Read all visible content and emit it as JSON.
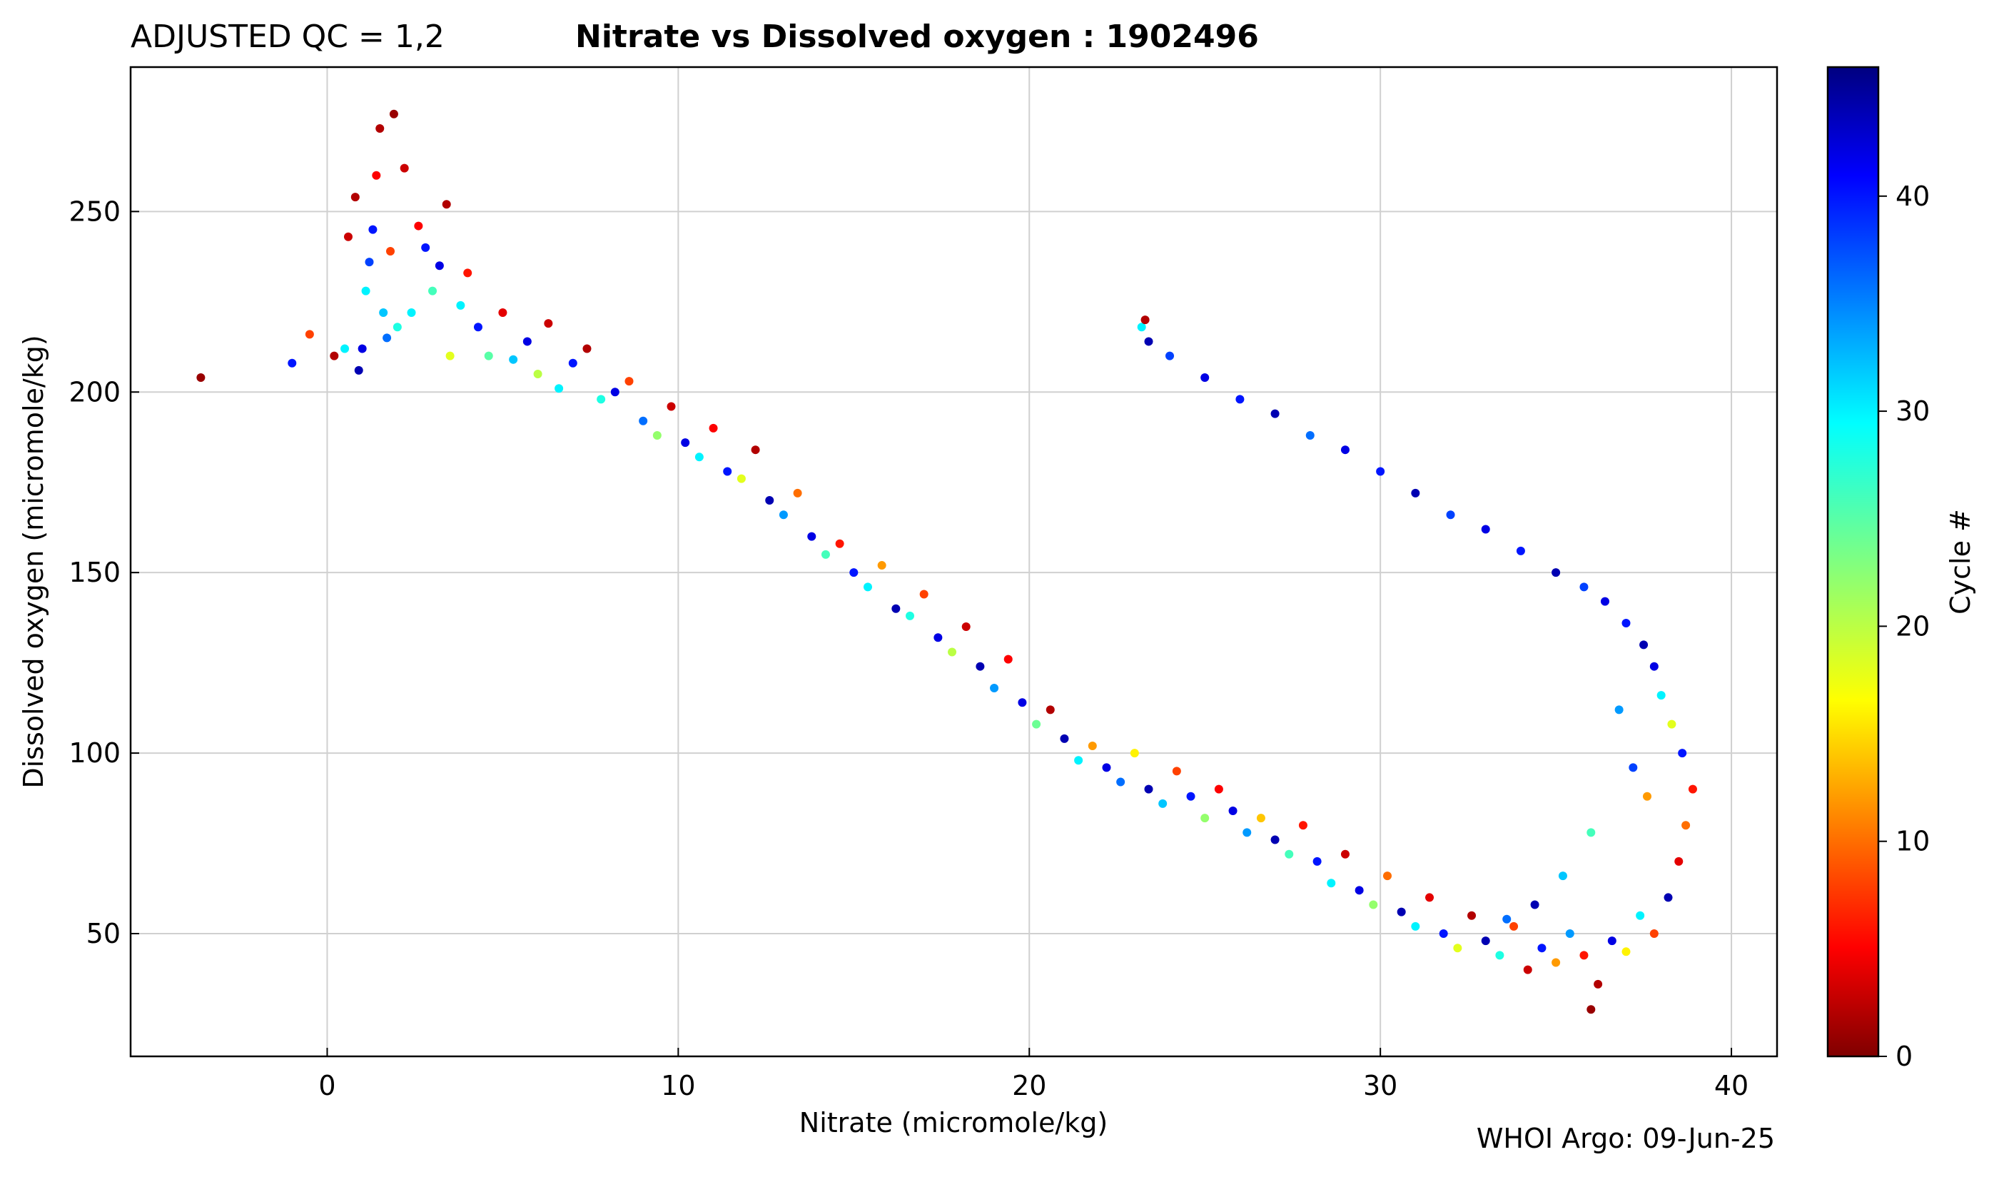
{
  "header": {
    "qc_label": "ADJUSTED QC = 1,2",
    "title": "Nitrate vs Dissolved oxygen : 1902496"
  },
  "footer": {
    "credit": "WHOI Argo: 09-Jun-25"
  },
  "colorbar": {
    "label": "Cycle #",
    "colormap": "jet",
    "range": [
      0,
      46
    ],
    "ticks": [
      "0",
      "10",
      "20",
      "30",
      "40"
    ]
  },
  "chart_data": {
    "type": "scatter",
    "title": "Nitrate vs Dissolved oxygen : 1902496",
    "subtitle": "ADJUSTED QC = 1,2",
    "xlabel": "Nitrate  (micromole/kg)",
    "ylabel": "Dissolved oxygen  (micromole/kg)",
    "xlim": [
      -5.6,
      41.3
    ],
    "ylim": [
      16,
      290
    ],
    "xticks": [
      "0",
      "10",
      "20",
      "30",
      "40"
    ],
    "yticks": [
      "50",
      "100",
      "150",
      "200",
      "250"
    ],
    "grid": true,
    "color_by": "Cycle #",
    "series": [
      {
        "points_note_free": true,
        "points": [
          [
            -3.6,
            204,
            1
          ],
          [
            -1.0,
            208,
            40
          ],
          [
            -0.5,
            216,
            8
          ],
          [
            0.2,
            210,
            2
          ],
          [
            0.5,
            212,
            30
          ],
          [
            0.6,
            243,
            3
          ],
          [
            0.8,
            254,
            2
          ],
          [
            0.9,
            206,
            44
          ],
          [
            1.0,
            212,
            42
          ],
          [
            1.1,
            228,
            30
          ],
          [
            1.2,
            236,
            38
          ],
          [
            1.3,
            245,
            40
          ],
          [
            1.4,
            260,
            5
          ],
          [
            1.5,
            273,
            2
          ],
          [
            1.6,
            222,
            32
          ],
          [
            1.7,
            215,
            36
          ],
          [
            1.8,
            239,
            8
          ],
          [
            1.9,
            277,
            1
          ],
          [
            2.0,
            218,
            28
          ],
          [
            2.2,
            262,
            3
          ],
          [
            2.4,
            222,
            30
          ],
          [
            2.6,
            246,
            5
          ],
          [
            2.8,
            240,
            40
          ],
          [
            3.0,
            228,
            26
          ],
          [
            3.2,
            235,
            42
          ],
          [
            3.4,
            252,
            2
          ],
          [
            3.5,
            210,
            18
          ],
          [
            3.8,
            224,
            30
          ],
          [
            4.0,
            233,
            6
          ],
          [
            4.3,
            218,
            40
          ],
          [
            4.6,
            210,
            25
          ],
          [
            5.0,
            222,
            4
          ],
          [
            5.3,
            209,
            32
          ],
          [
            5.7,
            214,
            42
          ],
          [
            6.0,
            205,
            20
          ],
          [
            6.3,
            219,
            3
          ],
          [
            6.6,
            201,
            30
          ],
          [
            7.0,
            208,
            40
          ],
          [
            7.4,
            212,
            2
          ],
          [
            7.8,
            198,
            28
          ],
          [
            8.2,
            200,
            42
          ],
          [
            8.6,
            203,
            8
          ],
          [
            9.0,
            192,
            36
          ],
          [
            9.4,
            188,
            22
          ],
          [
            9.8,
            196,
            3
          ],
          [
            10.2,
            186,
            42
          ],
          [
            10.6,
            182,
            30
          ],
          [
            11.0,
            190,
            5
          ],
          [
            11.4,
            178,
            40
          ],
          [
            11.8,
            176,
            18
          ],
          [
            12.2,
            184,
            2
          ],
          [
            12.6,
            170,
            44
          ],
          [
            13.0,
            166,
            34
          ],
          [
            13.4,
            172,
            10
          ],
          [
            13.8,
            160,
            42
          ],
          [
            14.2,
            155,
            26
          ],
          [
            14.6,
            158,
            6
          ],
          [
            15.0,
            150,
            40
          ],
          [
            15.4,
            146,
            30
          ],
          [
            15.8,
            152,
            12
          ],
          [
            16.2,
            140,
            44
          ],
          [
            16.6,
            138,
            28
          ],
          [
            17.0,
            144,
            8
          ],
          [
            17.4,
            132,
            42
          ],
          [
            17.8,
            128,
            20
          ],
          [
            18.2,
            135,
            3
          ],
          [
            18.6,
            124,
            44
          ],
          [
            19.0,
            118,
            34
          ],
          [
            19.4,
            126,
            5
          ],
          [
            19.8,
            114,
            42
          ],
          [
            20.2,
            108,
            24
          ],
          [
            20.6,
            112,
            2
          ],
          [
            21.0,
            104,
            44
          ],
          [
            21.4,
            98,
            30
          ],
          [
            21.8,
            102,
            12
          ],
          [
            22.2,
            96,
            42
          ],
          [
            22.6,
            92,
            36
          ],
          [
            23.0,
            100,
            16
          ],
          [
            23.4,
            90,
            44
          ],
          [
            23.8,
            86,
            32
          ],
          [
            24.2,
            95,
            8
          ],
          [
            24.6,
            88,
            40
          ],
          [
            25.0,
            82,
            22
          ],
          [
            25.4,
            90,
            5
          ],
          [
            25.8,
            84,
            42
          ],
          [
            26.2,
            78,
            34
          ],
          [
            26.6,
            82,
            14
          ],
          [
            27.0,
            76,
            44
          ],
          [
            27.4,
            72,
            26
          ],
          [
            27.8,
            80,
            6
          ],
          [
            28.2,
            70,
            40
          ],
          [
            28.6,
            64,
            30
          ],
          [
            29.0,
            72,
            3
          ],
          [
            29.4,
            62,
            42
          ],
          [
            29.8,
            58,
            22
          ],
          [
            30.2,
            66,
            10
          ],
          [
            30.6,
            56,
            44
          ],
          [
            31.0,
            52,
            30
          ],
          [
            31.4,
            60,
            4
          ],
          [
            31.8,
            50,
            40
          ],
          [
            32.2,
            46,
            18
          ],
          [
            32.6,
            55,
            2
          ],
          [
            33.0,
            48,
            44
          ],
          [
            33.4,
            44,
            28
          ],
          [
            33.8,
            52,
            8
          ],
          [
            34.2,
            40,
            3
          ],
          [
            34.6,
            46,
            40
          ],
          [
            35.0,
            42,
            12
          ],
          [
            35.4,
            50,
            34
          ],
          [
            35.8,
            44,
            6
          ],
          [
            36.0,
            29,
            1
          ],
          [
            36.2,
            36,
            2
          ],
          [
            36.6,
            48,
            42
          ],
          [
            37.0,
            45,
            16
          ],
          [
            37.4,
            55,
            30
          ],
          [
            37.8,
            50,
            8
          ],
          [
            38.2,
            60,
            44
          ],
          [
            38.5,
            70,
            4
          ],
          [
            38.7,
            80,
            10
          ],
          [
            38.9,
            90,
            6
          ],
          [
            38.6,
            100,
            40
          ],
          [
            38.3,
            108,
            18
          ],
          [
            38.0,
            116,
            30
          ],
          [
            37.8,
            124,
            42
          ],
          [
            37.5,
            130,
            44
          ],
          [
            37.0,
            136,
            40
          ],
          [
            36.4,
            142,
            42
          ],
          [
            35.8,
            146,
            38
          ],
          [
            35.0,
            150,
            44
          ],
          [
            34.0,
            156,
            40
          ],
          [
            33.0,
            162,
            42
          ],
          [
            32.0,
            166,
            38
          ],
          [
            31.0,
            172,
            44
          ],
          [
            30.0,
            178,
            40
          ],
          [
            29.0,
            184,
            42
          ],
          [
            28.0,
            188,
            36
          ],
          [
            27.0,
            194,
            44
          ],
          [
            26.0,
            198,
            40
          ],
          [
            25.0,
            204,
            42
          ],
          [
            24.0,
            210,
            38
          ],
          [
            23.4,
            214,
            44
          ],
          [
            23.2,
            218,
            30
          ],
          [
            23.3,
            220,
            2
          ],
          [
            36.8,
            112,
            34
          ],
          [
            37.2,
            96,
            38
          ],
          [
            36.0,
            78,
            26
          ],
          [
            35.2,
            66,
            32
          ],
          [
            34.4,
            58,
            44
          ],
          [
            33.6,
            54,
            36
          ],
          [
            37.6,
            88,
            12
          ]
        ]
      }
    ]
  }
}
